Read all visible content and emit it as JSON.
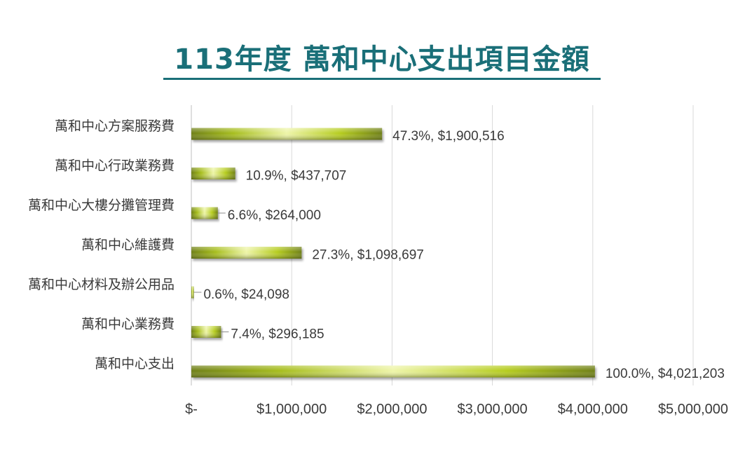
{
  "title": "113年度 萬和中心支出項目金額",
  "chart_data": {
    "type": "bar",
    "orientation": "horizontal",
    "title": "113年度 萬和中心支出項目金額",
    "categories": [
      "萬和中心方案服務費",
      "萬和中心行政業務費",
      "萬和中心大樓分攤管理費",
      "萬和中心維護費",
      "萬和中心材料及辦公用品",
      "萬和中心業務費",
      "萬和中心支出"
    ],
    "values": [
      1900516,
      437707,
      264000,
      1098697,
      24098,
      296185,
      4021203
    ],
    "data_labels": [
      "47.3%,  $1,900,516",
      "10.9%,  $437,707",
      "6.6%,  $264,000",
      "27.3%,  $1,098,697",
      "0.6%,  $24,098",
      "7.4%,  $296,185",
      "100.0%,  $4,021,203"
    ],
    "xlim": [
      0,
      5000000
    ],
    "x_ticks": [
      0,
      1000000,
      2000000,
      3000000,
      4000000,
      5000000
    ],
    "x_tick_labels": [
      "$-",
      "$1,000,000",
      "$2,000,000",
      "$3,000,000",
      "$4,000,000",
      "$5,000,000"
    ],
    "grid": true,
    "legend": false,
    "colors": {
      "bar_dark": "#6e7f12",
      "bar_mid": "#b5cc1e",
      "bar_light": "#eef5a8",
      "title": "#1a6f78",
      "grid": "#d9d9d9"
    }
  }
}
